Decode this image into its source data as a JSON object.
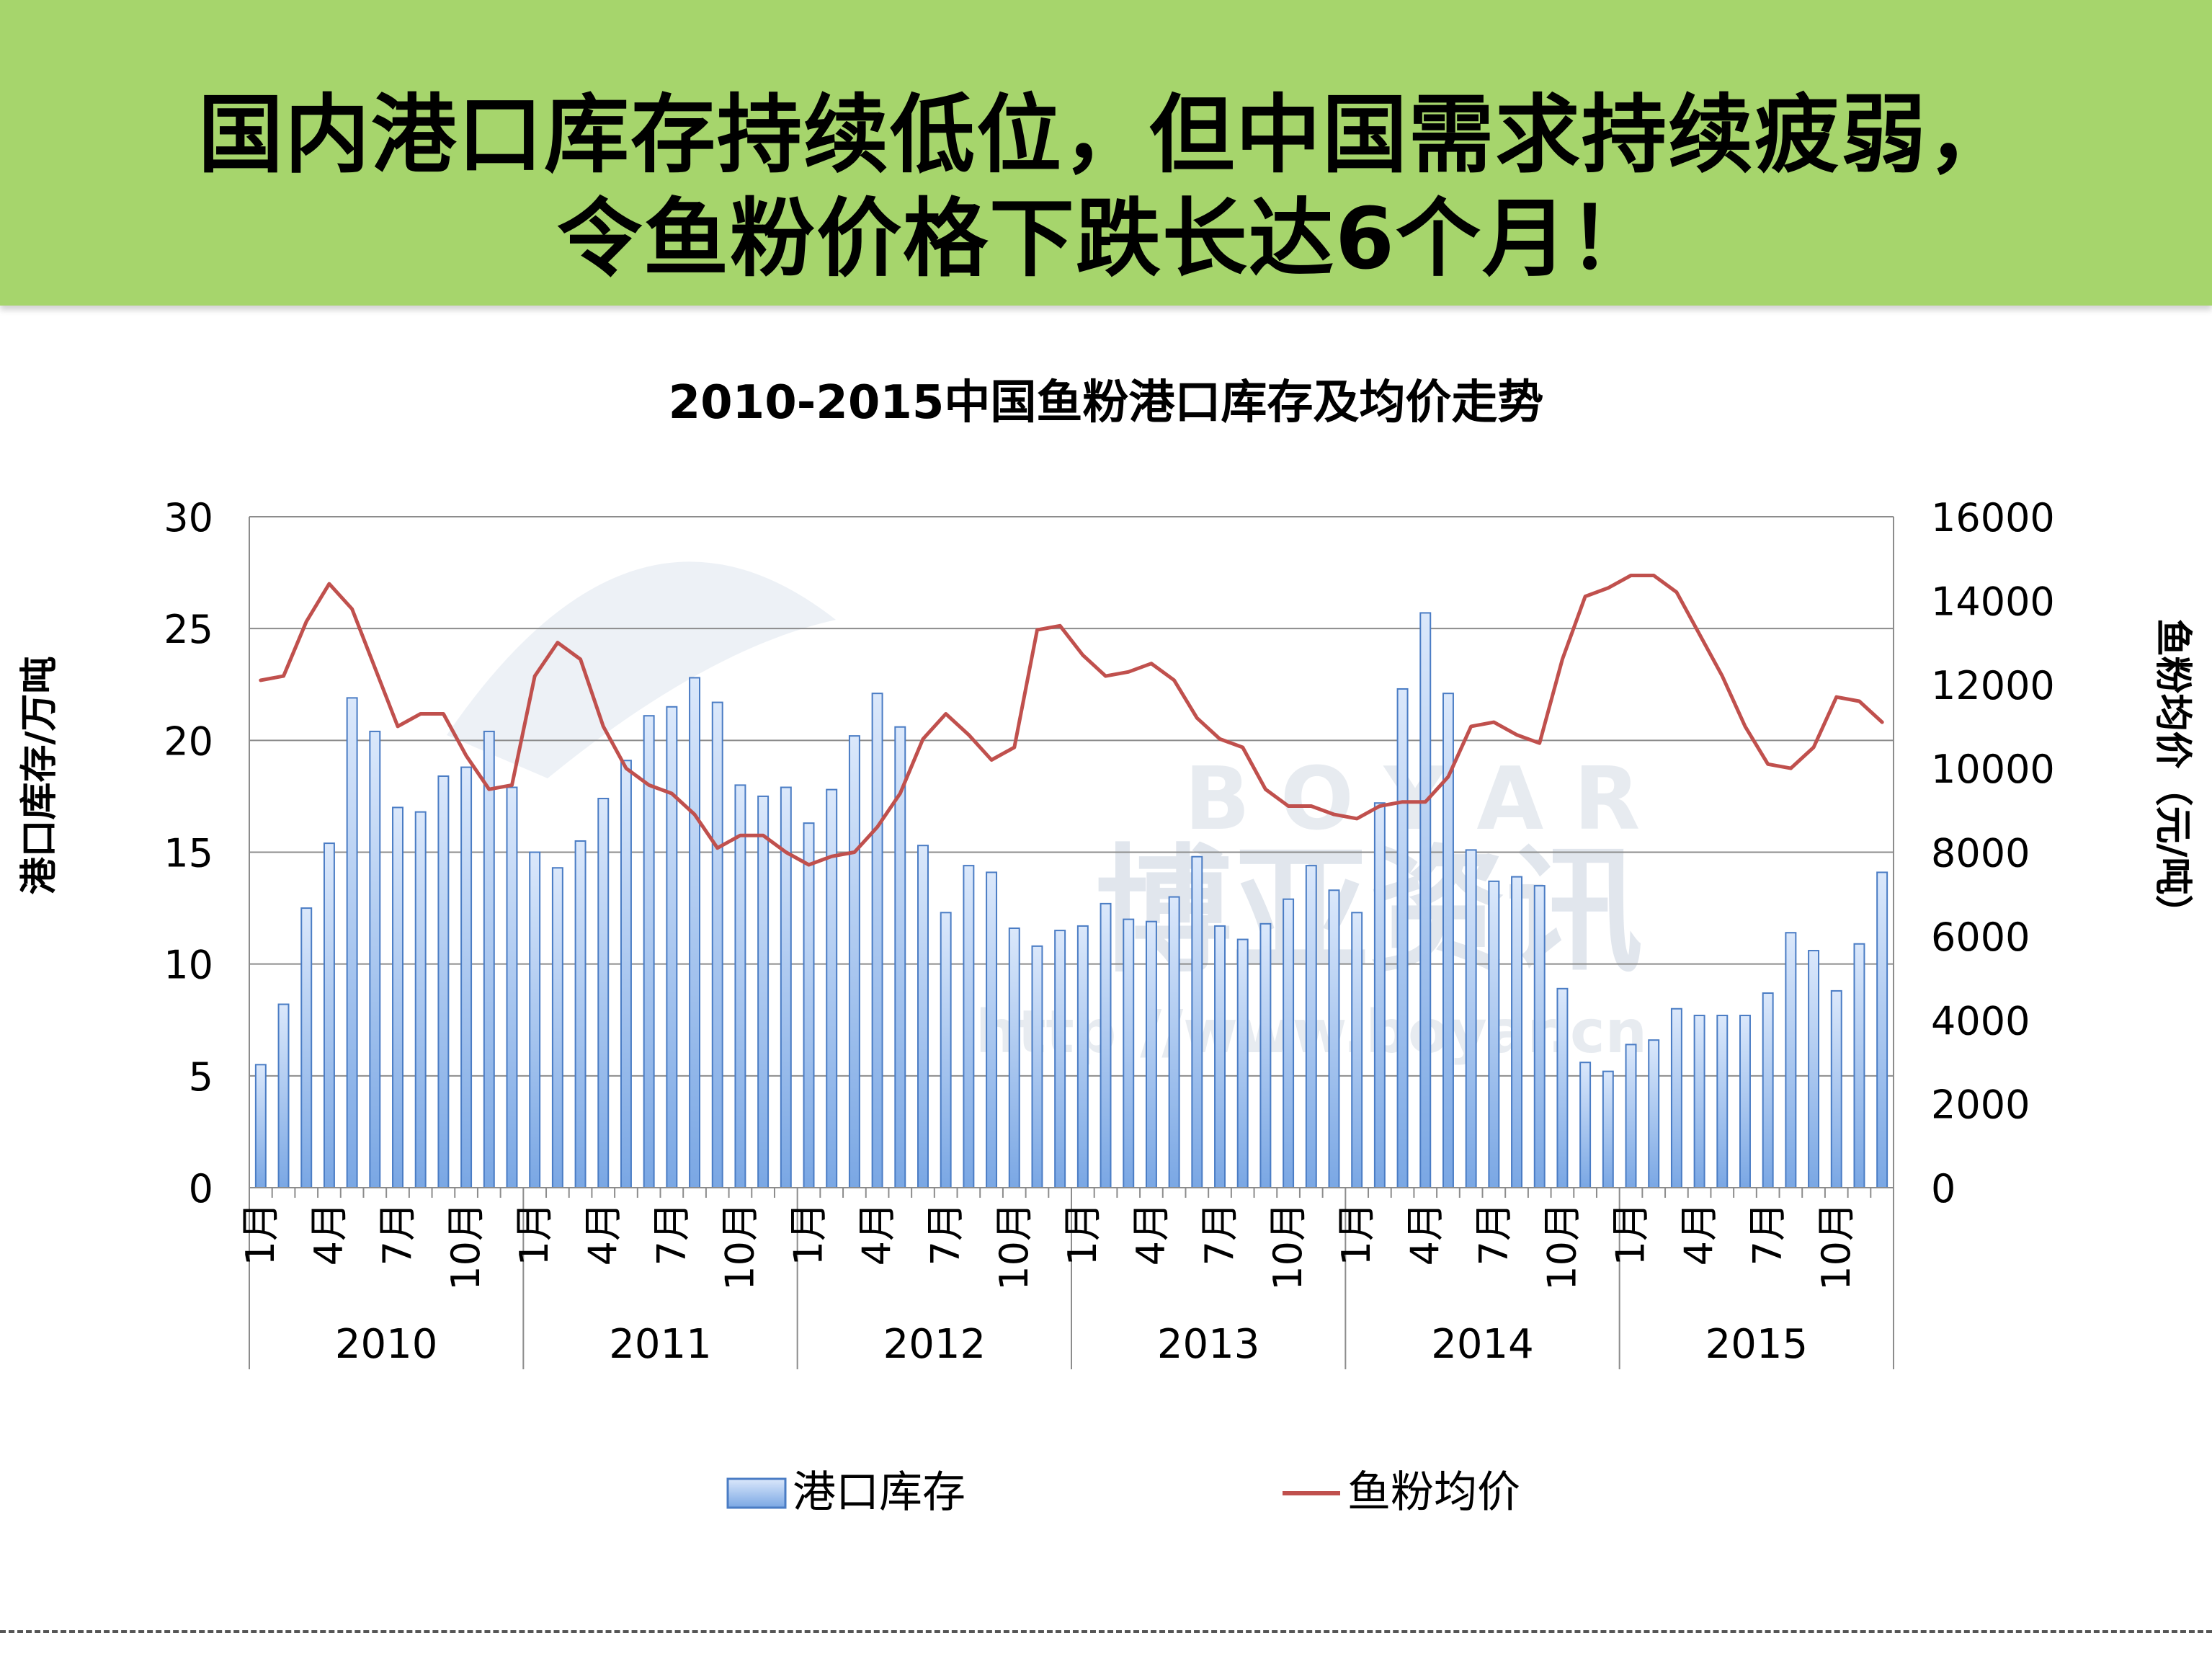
{
  "slide": {
    "headline_line1": "国内港口库存持续低位，但中国需求持续疲弱，",
    "headline_line2": "令鱼粉价格下跌长达6个月！"
  },
  "colors": {
    "banner": "#a6d56c",
    "bar_fill_top": "#dbe8fb",
    "bar_fill_bottom": "#7aa7e4",
    "bar_stroke": "#4a7cc4",
    "line": "#c0504d"
  },
  "watermark": {
    "text_latin": "B O Y A R",
    "text_cn": "博亚资讯",
    "url": "http://www.boyar.cn"
  },
  "chart_data": {
    "type": "bar",
    "title": "2010-2015中国鱼粉港口库存及均价走势",
    "ylabel": "港口库存/万吨",
    "y2label": "鱼粉均价（元/吨）",
    "ylim": [
      0,
      30
    ],
    "y2lim": [
      0,
      16000
    ],
    "yticks": [
      "0",
      "5",
      "10",
      "15",
      "20",
      "25",
      "30"
    ],
    "y2ticks": [
      "0",
      "2000",
      "4000",
      "6000",
      "8000",
      "10000",
      "12000",
      "14000",
      "16000"
    ],
    "month_tick_labels": [
      "1月",
      "4月",
      "7月",
      "10月"
    ],
    "years": [
      "2010",
      "2011",
      "2012",
      "2013",
      "2014",
      "2015"
    ],
    "grid": true,
    "legend_position": "bottom",
    "series": [
      {
        "name": "港口库存",
        "type": "bar",
        "axis": "left",
        "values": [
          5.5,
          8.2,
          12.5,
          15.4,
          21.9,
          20.4,
          17.0,
          16.8,
          18.4,
          18.8,
          20.4,
          17.9,
          15.0,
          14.3,
          15.5,
          17.4,
          19.1,
          21.1,
          21.5,
          22.8,
          21.7,
          18.0,
          17.5,
          17.9,
          16.3,
          17.8,
          20.2,
          22.1,
          20.6,
          15.3,
          12.3,
          14.4,
          14.1,
          11.6,
          10.8,
          11.5,
          11.7,
          12.7,
          12.0,
          11.9,
          13.0,
          14.8,
          11.7,
          11.1,
          11.8,
          12.9,
          14.4,
          13.3,
          12.3,
          17.2,
          22.3,
          25.7,
          22.1,
          15.1,
          13.7,
          13.9,
          13.5,
          8.9,
          5.6,
          5.2,
          6.4,
          6.6,
          8.0,
          7.7,
          7.7,
          7.7,
          8.7,
          11.4,
          10.6,
          8.8,
          10.9,
          14.1
        ]
      },
      {
        "name": "鱼粉均价",
        "type": "line",
        "axis": "right",
        "values": [
          12100,
          12200,
          13500,
          14400,
          13800,
          12400,
          11000,
          11300,
          11300,
          10300,
          9500,
          9600,
          12200,
          13000,
          12600,
          11000,
          10000,
          9600,
          9400,
          8900,
          8100,
          8400,
          8400,
          8000,
          7700,
          7900,
          8000,
          8600,
          9400,
          10700,
          11300,
          10800,
          10200,
          10500,
          13300,
          13400,
          12700,
          12200,
          12300,
          12500,
          12100,
          11200,
          10700,
          10500,
          9500,
          9100,
          9100,
          8900,
          8800,
          9100,
          9200,
          9200,
          9800,
          11000,
          11100,
          10800,
          10600,
          12600,
          14100,
          14300,
          14600,
          14600,
          14200,
          13200,
          12200,
          11000,
          10100,
          10000,
          10500,
          11700,
          11600,
          11100
        ]
      }
    ]
  }
}
